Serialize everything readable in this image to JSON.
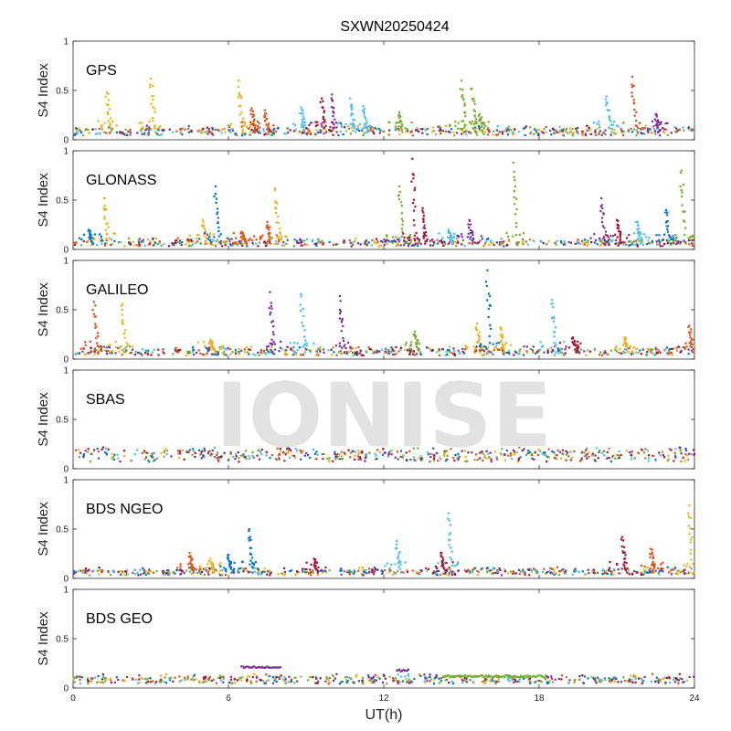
{
  "title": "SXWN20250424",
  "watermark": "IONISE",
  "xlabel": "UT(h)",
  "colors": [
    "#0072BD",
    "#D95319",
    "#EDB120",
    "#7E2F8E",
    "#77AC30",
    "#4DBEEE",
    "#A2142F"
  ],
  "chart_data": {
    "type": "scatter",
    "title": "SXWN20250424",
    "xlabel": "UT(h)",
    "ylabel": "S4 Index",
    "xlim": [
      0,
      24
    ],
    "xticks": [
      0,
      6,
      12,
      18,
      24
    ],
    "ylim": [
      0,
      1
    ],
    "yticks": [
      0,
      0.5,
      1
    ],
    "ytick_labels": [
      "0",
      "0.5",
      "1"
    ],
    "legend": "none",
    "grid": false,
    "panels": [
      {
        "label": "GPS",
        "baseline": 0.08,
        "spikes": [
          {
            "x": 1.3,
            "peak": 0.48,
            "color": 2
          },
          {
            "x": 3.0,
            "peak": 0.62,
            "color": 2
          },
          {
            "x": 6.4,
            "peak": 0.6,
            "color": 2
          },
          {
            "x": 6.9,
            "peak": 0.32,
            "color": 1
          },
          {
            "x": 7.4,
            "peak": 0.3,
            "color": 1
          },
          {
            "x": 8.8,
            "peak": 0.33,
            "color": 5
          },
          {
            "x": 9.6,
            "peak": 0.42,
            "color": 6
          },
          {
            "x": 10.0,
            "peak": 0.46,
            "color": 3
          },
          {
            "x": 10.7,
            "peak": 0.42,
            "color": 5
          },
          {
            "x": 11.2,
            "peak": 0.34,
            "color": 5
          },
          {
            "x": 12.6,
            "peak": 0.28,
            "color": 4
          },
          {
            "x": 15.0,
            "peak": 0.6,
            "color": 4
          },
          {
            "x": 15.4,
            "peak": 0.52,
            "color": 4
          },
          {
            "x": 15.7,
            "peak": 0.26,
            "color": 4
          },
          {
            "x": 20.6,
            "peak": 0.44,
            "color": 5
          },
          {
            "x": 21.6,
            "peak": 0.64,
            "color": 1
          },
          {
            "x": 22.5,
            "peak": 0.26,
            "color": 3
          }
        ]
      },
      {
        "label": "GLONASS",
        "baseline": 0.06,
        "spikes": [
          {
            "x": 0.6,
            "peak": 0.2,
            "color": 0
          },
          {
            "x": 1.2,
            "peak": 0.52,
            "color": 2
          },
          {
            "x": 5.0,
            "peak": 0.3,
            "color": 2
          },
          {
            "x": 5.5,
            "peak": 0.64,
            "color": 0
          },
          {
            "x": 6.5,
            "peak": 0.18,
            "color": 1
          },
          {
            "x": 7.5,
            "peak": 0.28,
            "color": 1
          },
          {
            "x": 7.8,
            "peak": 0.62,
            "color": 2
          },
          {
            "x": 12.6,
            "peak": 0.64,
            "color": 4
          },
          {
            "x": 13.1,
            "peak": 0.92,
            "color": 6
          },
          {
            "x": 13.5,
            "peak": 0.42,
            "color": 6
          },
          {
            "x": 14.5,
            "peak": 0.2,
            "color": 5
          },
          {
            "x": 15.3,
            "peak": 0.3,
            "color": 3
          },
          {
            "x": 17.0,
            "peak": 0.88,
            "color": 4
          },
          {
            "x": 20.4,
            "peak": 0.52,
            "color": 3
          },
          {
            "x": 21.0,
            "peak": 0.3,
            "color": 6
          },
          {
            "x": 21.8,
            "peak": 0.28,
            "color": 5
          },
          {
            "x": 22.9,
            "peak": 0.4,
            "color": 0
          },
          {
            "x": 23.5,
            "peak": 0.8,
            "color": 4
          }
        ]
      },
      {
        "label": "GALILEO",
        "baseline": 0.07,
        "spikes": [
          {
            "x": 0.8,
            "peak": 0.58,
            "color": 1
          },
          {
            "x": 1.9,
            "peak": 0.56,
            "color": 2
          },
          {
            "x": 5.3,
            "peak": 0.2,
            "color": 2
          },
          {
            "x": 7.6,
            "peak": 0.68,
            "color": 3
          },
          {
            "x": 8.8,
            "peak": 0.66,
            "color": 5
          },
          {
            "x": 10.3,
            "peak": 0.64,
            "color": 3
          },
          {
            "x": 13.2,
            "peak": 0.28,
            "color": 4
          },
          {
            "x": 15.6,
            "peak": 0.36,
            "color": 2
          },
          {
            "x": 16.0,
            "peak": 0.9,
            "color": 0
          },
          {
            "x": 16.5,
            "peak": 0.32,
            "color": 2
          },
          {
            "x": 18.5,
            "peak": 0.6,
            "color": 5
          },
          {
            "x": 19.3,
            "peak": 0.22,
            "color": 6
          },
          {
            "x": 21.3,
            "peak": 0.22,
            "color": 2
          },
          {
            "x": 23.8,
            "peak": 0.34,
            "color": 1
          }
        ]
      },
      {
        "label": "SBAS",
        "baseline": 0.13,
        "spikes": []
      },
      {
        "label": "BDS NGEO",
        "baseline": 0.06,
        "spikes": [
          {
            "x": 4.5,
            "peak": 0.26,
            "color": 1
          },
          {
            "x": 5.3,
            "peak": 0.2,
            "color": 2
          },
          {
            "x": 6.0,
            "peak": 0.24,
            "color": 0
          },
          {
            "x": 6.8,
            "peak": 0.5,
            "color": 0
          },
          {
            "x": 9.3,
            "peak": 0.2,
            "color": 6
          },
          {
            "x": 12.5,
            "peak": 0.38,
            "color": 5
          },
          {
            "x": 14.5,
            "peak": 0.66,
            "color": 5
          },
          {
            "x": 14.2,
            "peak": 0.26,
            "color": 6
          },
          {
            "x": 21.2,
            "peak": 0.42,
            "color": 6
          },
          {
            "x": 22.3,
            "peak": 0.3,
            "color": 1
          },
          {
            "x": 23.8,
            "peak": 0.74,
            "color": 2
          }
        ]
      },
      {
        "label": "BDS GEO",
        "baseline": 0.08,
        "spikes": [],
        "segments": [
          {
            "x_start": 6.5,
            "x_end": 8.0,
            "y": 0.21,
            "color": 3
          },
          {
            "x_start": 12.5,
            "x_end": 13.0,
            "y": 0.18,
            "color": 3
          },
          {
            "x_start": 14.3,
            "x_end": 18.3,
            "y": 0.12,
            "color": 4
          }
        ]
      }
    ]
  }
}
